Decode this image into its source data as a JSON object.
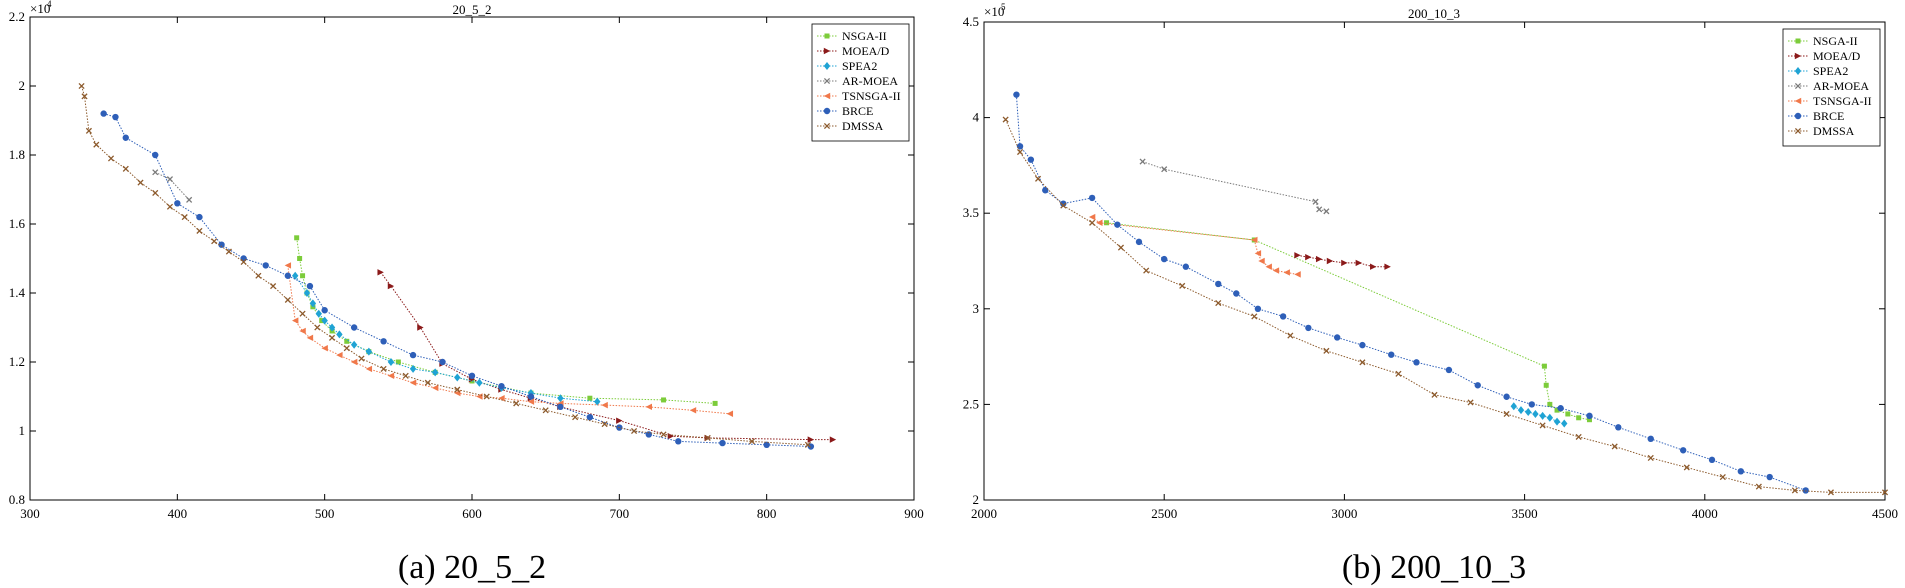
{
  "colors": {
    "NSGA-II": "#7ccc3a",
    "MOEA/D": "#8b1a1a",
    "SPEA2": "#1fa3d4",
    "AR-MOEA": "#7a7a7a",
    "TSNSGA-II": "#f0784a",
    "BRCE": "#2e5fb8",
    "DMSSA": "#8c5a2c"
  },
  "chart_data": [
    {
      "type": "scatter",
      "title": "20_5_2",
      "caption": "(a) 20_5_2",
      "xlim": [
        300,
        900
      ],
      "ylim": [
        8000,
        22000
      ],
      "xticks": [
        "300",
        "400",
        "500",
        "600",
        "700",
        "800",
        "900"
      ],
      "yticks": [
        "0.8",
        "1",
        "1.2",
        "1.4",
        "1.6",
        "1.8",
        "2",
        "2.2"
      ],
      "y_exponent": "×10",
      "y_exponent_power": "4",
      "series": [
        {
          "name": "NSGA-II",
          "marker": "square",
          "x": [
            481,
            483,
            485,
            488,
            492,
            498,
            505,
            515,
            530,
            550,
            575,
            600,
            640,
            680,
            730,
            765
          ],
          "y": [
            15600,
            15000,
            14500,
            14000,
            13600,
            13200,
            12900,
            12600,
            12300,
            12000,
            11700,
            11450,
            11100,
            10950,
            10900,
            10800
          ]
        },
        {
          "name": "MOEA/D",
          "marker": "triangle-right",
          "x": [
            538,
            545,
            565,
            580,
            600,
            620,
            640,
            660,
            700,
            735,
            760,
            830,
            845
          ],
          "y": [
            14600,
            14200,
            13000,
            11950,
            11500,
            11200,
            10950,
            10700,
            10300,
            9850,
            9800,
            9750,
            9750
          ]
        },
        {
          "name": "SPEA2",
          "marker": "diamond",
          "x": [
            480,
            488,
            492,
            496,
            500,
            505,
            510,
            520,
            530,
            545,
            560,
            575,
            590,
            605,
            620,
            640,
            660,
            685
          ],
          "y": [
            14500,
            14000,
            13700,
            13400,
            13200,
            13000,
            12800,
            12500,
            12300,
            12000,
            11800,
            11700,
            11550,
            11400,
            11250,
            11100,
            10950,
            10850
          ]
        },
        {
          "name": "AR-MOEA",
          "marker": "x",
          "x": [
            385,
            395,
            408
          ],
          "y": [
            17500,
            17300,
            16700
          ]
        },
        {
          "name": "TSNSGA-II",
          "marker": "triangle-left",
          "x": [
            475,
            480,
            485,
            490,
            500,
            510,
            520,
            530,
            545,
            560,
            575,
            590,
            605,
            620,
            640,
            660,
            690,
            720,
            750,
            775
          ],
          "y": [
            14800,
            13200,
            12900,
            12700,
            12400,
            12200,
            12000,
            11800,
            11600,
            11400,
            11250,
            11100,
            11000,
            10950,
            10850,
            10800,
            10750,
            10700,
            10600,
            10500
          ]
        },
        {
          "name": "BRCE",
          "marker": "circle",
          "x": [
            350,
            358,
            365,
            385,
            400,
            415,
            430,
            445,
            460,
            475,
            490,
            500,
            520,
            540,
            560,
            580,
            600,
            620,
            640,
            660,
            680,
            700,
            720,
            740,
            770,
            800,
            830
          ],
          "y": [
            19200,
            19100,
            18500,
            18000,
            16600,
            16200,
            15400,
            15000,
            14800,
            14500,
            14200,
            13500,
            13000,
            12600,
            12200,
            12000,
            11600,
            11300,
            11000,
            10700,
            10400,
            10100,
            9900,
            9700,
            9650,
            9600,
            9550
          ]
        },
        {
          "name": "DMSSA",
          "marker": "x",
          "x": [
            335,
            337,
            340,
            345,
            355,
            365,
            375,
            385,
            395,
            405,
            415,
            425,
            435,
            445,
            455,
            465,
            475,
            485,
            495,
            505,
            515,
            525,
            540,
            555,
            570,
            590,
            610,
            630,
            650,
            670,
            690,
            710,
            730,
            760,
            790,
            828
          ],
          "y": [
            20000,
            19700,
            18700,
            18300,
            17900,
            17600,
            17200,
            16900,
            16500,
            16200,
            15800,
            15500,
            15200,
            14900,
            14500,
            14200,
            13800,
            13400,
            13000,
            12700,
            12400,
            12100,
            11800,
            11600,
            11400,
            11200,
            11000,
            10800,
            10600,
            10400,
            10200,
            10000,
            9900,
            9800,
            9700,
            9600
          ]
        }
      ]
    },
    {
      "type": "scatter",
      "title": "200_10_3",
      "caption": "(b) 200_10_3",
      "xlim": [
        2000,
        4500
      ],
      "ylim": [
        200000,
        450000
      ],
      "xticks": [
        "2000",
        "2500",
        "3000",
        "3500",
        "4000",
        "4500"
      ],
      "yticks": [
        "2",
        "2.5",
        "3",
        "3.5",
        "4",
        "4.5"
      ],
      "y_exponent": "×10",
      "y_exponent_power": "5",
      "series": [
        {
          "name": "NSGA-II",
          "marker": "square",
          "x": [
            2340,
            2750,
            3555,
            3560,
            3570,
            3590,
            3620,
            3650,
            3680
          ],
          "y": [
            345000,
            336000,
            270000,
            260000,
            250000,
            247000,
            245000,
            243000,
            242000
          ]
        },
        {
          "name": "MOEA/D",
          "marker": "triangle-right",
          "x": [
            2870,
            2900,
            2930,
            2960,
            3000,
            3040,
            3080,
            3120
          ],
          "y": [
            328000,
            327000,
            326000,
            325000,
            324000,
            324000,
            322000,
            322000
          ]
        },
        {
          "name": "SPEA2",
          "marker": "diamond",
          "x": [
            3470,
            3490,
            3510,
            3530,
            3550,
            3570,
            3590,
            3610
          ],
          "y": [
            249000,
            247000,
            246000,
            245000,
            244000,
            243000,
            241000,
            240000
          ]
        },
        {
          "name": "AR-MOEA",
          "marker": "x",
          "x": [
            2440,
            2500,
            2920,
            2930,
            2950
          ],
          "y": [
            377000,
            373000,
            356000,
            352000,
            351000
          ]
        },
        {
          "name": "TSNSGA-II",
          "marker": "triangle-left",
          "x": [
            2300,
            2320,
            2750,
            2760,
            2770,
            2790,
            2810,
            2840,
            2870
          ],
          "y": [
            348000,
            345000,
            336000,
            329000,
            325000,
            322000,
            320000,
            319000,
            318000
          ]
        },
        {
          "name": "BRCE",
          "marker": "circle",
          "x": [
            2090,
            2100,
            2130,
            2170,
            2220,
            2300,
            2370,
            2430,
            2500,
            2560,
            2650,
            2700,
            2760,
            2830,
            2900,
            2980,
            3050,
            3130,
            3200,
            3290,
            3370,
            3450,
            3520,
            3600,
            3680,
            3760,
            3850,
            3940,
            4020,
            4100,
            4180,
            4280
          ],
          "y": [
            412000,
            385000,
            378000,
            362000,
            355000,
            358000,
            344000,
            335000,
            326000,
            322000,
            313000,
            308000,
            300000,
            296000,
            290000,
            285000,
            281000,
            276000,
            272000,
            268000,
            260000,
            254000,
            250000,
            248000,
            244000,
            238000,
            232000,
            226000,
            221000,
            215000,
            212000,
            205000
          ]
        },
        {
          "name": "DMSSA",
          "marker": "x",
          "x": [
            2060,
            2100,
            2150,
            2220,
            2300,
            2380,
            2450,
            2550,
            2650,
            2750,
            2850,
            2950,
            3050,
            3150,
            3250,
            3350,
            3450,
            3550,
            3650,
            3750,
            3850,
            3950,
            4050,
            4150,
            4250,
            4350,
            4500
          ],
          "y": [
            399000,
            382000,
            368000,
            354000,
            345000,
            332000,
            320000,
            312000,
            303000,
            296000,
            286000,
            278000,
            272000,
            266000,
            255000,
            251000,
            245000,
            239000,
            233000,
            228000,
            222000,
            217000,
            212000,
            207000,
            205000,
            204000,
            204000
          ]
        }
      ]
    }
  ]
}
